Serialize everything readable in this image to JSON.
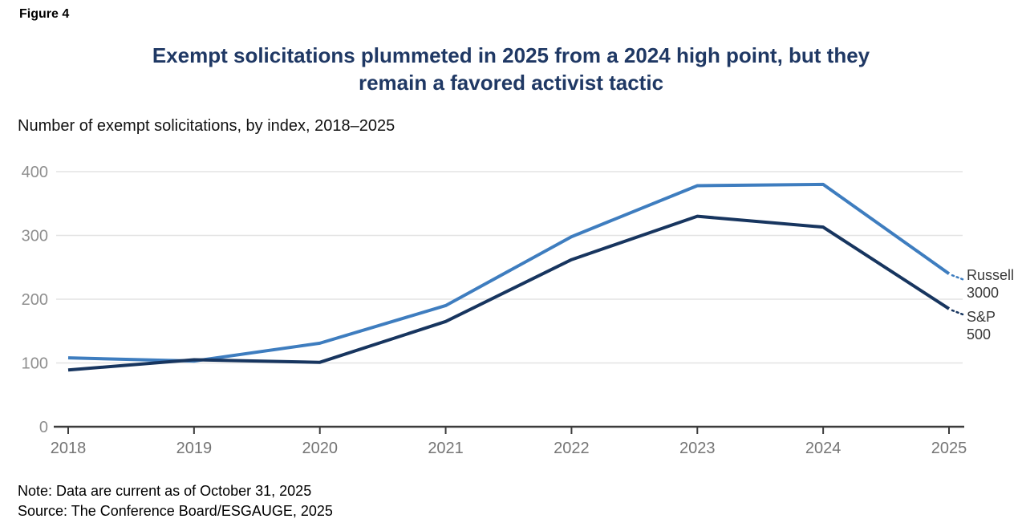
{
  "figure_label": "Figure 4",
  "title_line1": "Exempt solicitations plummeted in 2025 from a 2024 high point, but they",
  "title_line2": "remain a favored activist tactic",
  "subtitle": "Number of exempt solicitations, by index, 2018–2025",
  "note": "Note: Data are current as of October 31, 2025",
  "source": "Source: The Conference Board/ESGAUGE, 2025",
  "colors": {
    "title": "#1F3864",
    "russell": "#3E7DBF",
    "sp500": "#17355F",
    "gridline": "#E3E3E3",
    "axis": "#3C3C3C",
    "x_tick_label": "#757575",
    "y_tick_label": "#8F8F8F",
    "series_label": "#3A3A3A"
  },
  "chart_data": {
    "type": "line",
    "title": "Number of exempt solicitations, by index, 2018–2025",
    "xlabel": "",
    "ylabel": "Number of exempt solicitations",
    "categories": [
      "2018",
      "2019",
      "2020",
      "2021",
      "2022",
      "2023",
      "2024",
      "2025"
    ],
    "series": [
      {
        "name": "Russell 3000",
        "label_lines": [
          "Russell",
          "3000"
        ],
        "color_key": "russell",
        "label_dy": 8,
        "values": [
          108,
          103,
          131,
          190,
          298,
          378,
          380,
          240
        ]
      },
      {
        "name": "S&P 500",
        "label_lines": [
          "S&P",
          "500"
        ],
        "color_key": "sp500",
        "label_dy": 16,
        "values": [
          89,
          105,
          101,
          165,
          262,
          330,
          313,
          185
        ]
      }
    ],
    "y_ticks": [
      0,
      100,
      200,
      300,
      400
    ],
    "ylim": [
      0,
      400
    ],
    "grid": true,
    "legend_position": "end-of-line"
  }
}
